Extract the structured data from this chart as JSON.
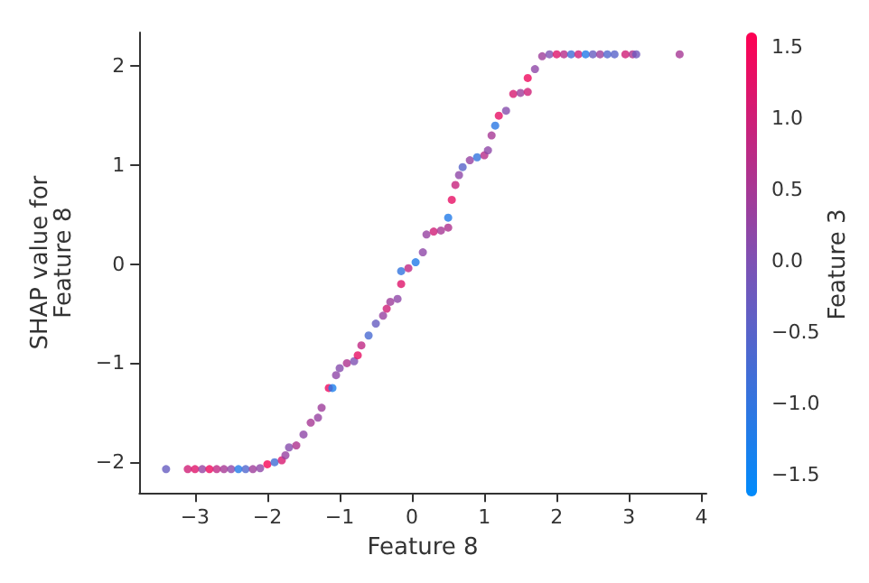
{
  "chart_data": {
    "type": "scatter",
    "xlabel": "Feature 8",
    "ylabel": "SHAP value for\nFeature 8",
    "clabel": "Feature 3",
    "xlim": [
      -3.77,
      4.07
    ],
    "ylim": [
      -2.31,
      2.34
    ],
    "xticks": [
      {
        "value": -3,
        "label": "−3"
      },
      {
        "value": -2,
        "label": "−2"
      },
      {
        "value": -1,
        "label": "−1"
      },
      0,
      1,
      2,
      3,
      4
    ],
    "yticks": [
      {
        "value": -2,
        "label": "−2"
      },
      {
        "value": -1,
        "label": "−1"
      },
      0,
      1,
      2
    ],
    "clim": [
      -1.65,
      1.6
    ],
    "cticks": [
      {
        "value": -1.5,
        "label": "−1.5"
      },
      {
        "value": -1,
        "label": "−1.0"
      },
      {
        "value": -0.5,
        "label": "−0.5"
      },
      {
        "value": 0,
        "label": "0.0"
      },
      {
        "value": 0.5,
        "label": "0.5"
      },
      {
        "value": 1,
        "label": "1.0"
      },
      {
        "value": 1.5,
        "label": "1.5"
      }
    ],
    "marker": "circle",
    "grid": false,
    "x": [
      -3.4,
      -3.1,
      -3.0,
      -2.9,
      -2.8,
      -2.7,
      -2.6,
      -2.5,
      -2.4,
      -2.3,
      -2.2,
      -2.1,
      -2.0,
      -1.9,
      -1.8,
      -1.75,
      -1.7,
      -1.6,
      -1.5,
      -1.4,
      -1.3,
      -1.25,
      -1.15,
      -1.1,
      -1.05,
      -1.0,
      -0.9,
      -0.8,
      -0.75,
      -0.7,
      -0.6,
      -0.5,
      -0.4,
      -0.35,
      -0.3,
      -0.2,
      -0.15,
      -0.15,
      -0.05,
      0.05,
      0.15,
      0.2,
      0.3,
      0.4,
      0.5,
      0.5,
      0.55,
      0.6,
      0.65,
      0.7,
      0.8,
      0.9,
      1.0,
      1.05,
      1.1,
      1.15,
      1.2,
      1.3,
      1.4,
      1.5,
      1.6,
      1.6,
      1.7,
      1.8,
      1.9,
      2.0,
      2.1,
      2.2,
      2.3,
      2.4,
      2.5,
      2.6,
      2.7,
      2.8,
      2.95,
      3.05,
      3.1,
      3.7
    ],
    "values": [
      -2.07,
      -2.07,
      -2.07,
      -2.07,
      -2.07,
      -2.07,
      -2.07,
      -2.07,
      -2.07,
      -2.07,
      -2.07,
      -2.06,
      -2.02,
      -2.0,
      -1.98,
      -1.93,
      -1.85,
      -1.83,
      -1.72,
      -1.6,
      -1.55,
      -1.45,
      -1.25,
      -1.25,
      -1.12,
      -1.05,
      -1.0,
      -0.98,
      -0.92,
      -0.82,
      -0.72,
      -0.6,
      -0.52,
      -0.45,
      -0.38,
      -0.35,
      -0.2,
      -0.07,
      -0.04,
      0.02,
      0.12,
      0.3,
      0.33,
      0.34,
      0.37,
      0.47,
      0.65,
      0.8,
      0.9,
      0.98,
      1.05,
      1.08,
      1.1,
      1.15,
      1.3,
      1.4,
      1.5,
      1.55,
      1.72,
      1.73,
      1.74,
      1.88,
      1.97,
      2.1,
      2.12,
      2.12,
      2.12,
      2.12,
      2.12,
      2.12,
      2.12,
      2.12,
      2.12,
      2.12,
      2.12,
      2.12,
      2.12,
      2.12
    ],
    "cvalues": [
      -0.3,
      1.0,
      1.2,
      0.3,
      1.4,
      0.8,
      0.5,
      0.2,
      -1.2,
      -0.6,
      0.4,
      0.2,
      1.5,
      -0.8,
      1.1,
      0.3,
      0.1,
      0.6,
      0.2,
      0.5,
      0.3,
      0.4,
      1.4,
      -1.3,
      0.2,
      0.1,
      0.6,
      0.0,
      1.3,
      0.8,
      -0.7,
      -0.3,
      0.3,
      1.0,
      0.4,
      0.2,
      1.2,
      -1.0,
      0.8,
      -1.2,
      0.2,
      0.3,
      1.0,
      0.5,
      0.6,
      -1.2,
      1.3,
      0.9,
      0.2,
      -0.5,
      0.3,
      -1.0,
      0.7,
      0.2,
      0.5,
      -1.1,
      1.3,
      0.1,
      1.1,
      0.4,
      1.0,
      1.4,
      0.2,
      0.4,
      0.0,
      1.2,
      0.7,
      -0.8,
      1.0,
      -1.2,
      -0.3,
      0.4,
      -0.6,
      -0.5,
      1.0,
      0.6,
      -0.2,
      0.5
    ]
  }
}
